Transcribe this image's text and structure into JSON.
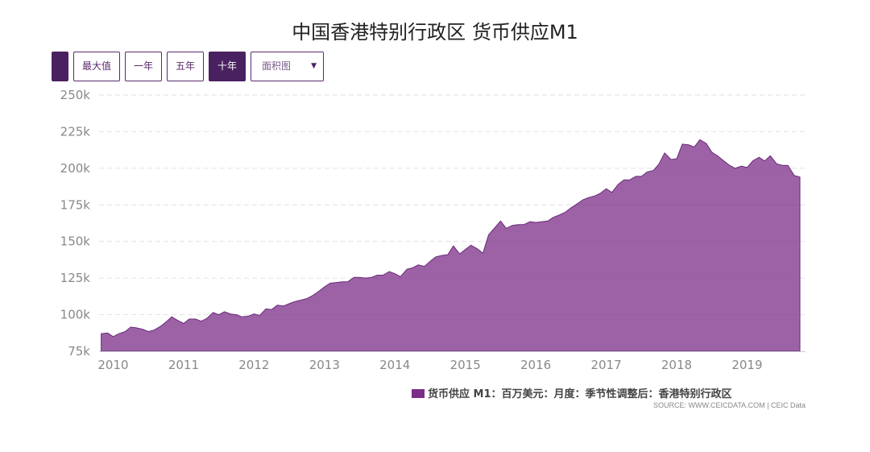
{
  "title": "中国香港特别行政区 货币供应M1",
  "toolbar": {
    "buttons": [
      {
        "label": "",
        "active": true
      },
      {
        "label": "最大值",
        "active": false
      },
      {
        "label": "一年",
        "active": false
      },
      {
        "label": "五年",
        "active": false
      },
      {
        "label": "十年",
        "active": true
      }
    ],
    "select": {
      "value": "面积图"
    }
  },
  "colors": {
    "area": "#7b2e87",
    "accent": "#4a2160"
  },
  "legend": {
    "label": "货币供应 M1：百万美元：月度：季节性调整后：香港特别行政区"
  },
  "source": "SOURCE: WWW.CEICDATA.COM | CEIC Data",
  "chart_data": {
    "type": "area",
    "ylim": [
      75000,
      250000
    ],
    "xlim": [
      2009.8,
      2019.83
    ],
    "y_ticks": [
      {
        "value": 75000,
        "label": "75k"
      },
      {
        "value": 100000,
        "label": "100k"
      },
      {
        "value": 125000,
        "label": "125k"
      },
      {
        "value": 150000,
        "label": "150k"
      },
      {
        "value": 175000,
        "label": "175k"
      },
      {
        "value": 200000,
        "label": "200k"
      },
      {
        "value": 225000,
        "label": "225k"
      },
      {
        "value": 250000,
        "label": "250k"
      }
    ],
    "x_ticks": [
      {
        "value": 2010,
        "label": "2010"
      },
      {
        "value": 2011,
        "label": "2011"
      },
      {
        "value": 2012,
        "label": "2012"
      },
      {
        "value": 2013,
        "label": "2013"
      },
      {
        "value": 2014,
        "label": "2014"
      },
      {
        "value": 2015,
        "label": "2015"
      },
      {
        "value": 2016,
        "label": "2016"
      },
      {
        "value": 2017,
        "label": "2017"
      },
      {
        "value": 2018,
        "label": "2018"
      },
      {
        "value": 2019,
        "label": "2019"
      }
    ],
    "grid": true,
    "series": [
      {
        "name": "货币供应 M1：百万美元：月度：季节性调整后：香港特别行政区",
        "x": [
          2009.83,
          2009.92,
          2010.0,
          2010.08,
          2010.17,
          2010.25,
          2010.33,
          2010.42,
          2010.5,
          2010.58,
          2010.67,
          2010.75,
          2010.83,
          2010.92,
          2011.0,
          2011.08,
          2011.17,
          2011.25,
          2011.33,
          2011.42,
          2011.5,
          2011.58,
          2011.67,
          2011.75,
          2011.83,
          2011.92,
          2012.0,
          2012.08,
          2012.17,
          2012.25,
          2012.33,
          2012.42,
          2012.5,
          2012.58,
          2012.67,
          2012.75,
          2012.83,
          2012.92,
          2013.0,
          2013.08,
          2013.17,
          2013.25,
          2013.33,
          2013.42,
          2013.5,
          2013.58,
          2013.67,
          2013.75,
          2013.83,
          2013.92,
          2014.0,
          2014.08,
          2014.17,
          2014.25,
          2014.33,
          2014.42,
          2014.5,
          2014.58,
          2014.67,
          2014.75,
          2014.83,
          2014.92,
          2015.0,
          2015.08,
          2015.17,
          2015.25,
          2015.33,
          2015.42,
          2015.5,
          2015.58,
          2015.67,
          2015.75,
          2015.83,
          2015.92,
          2016.0,
          2016.08,
          2016.17,
          2016.25,
          2016.33,
          2016.42,
          2016.5,
          2016.58,
          2016.67,
          2016.75,
          2016.83,
          2016.92,
          2017.0,
          2017.08,
          2017.17,
          2017.25,
          2017.33,
          2017.42,
          2017.5,
          2017.58,
          2017.67,
          2017.75,
          2017.83,
          2017.92,
          2018.0,
          2018.08,
          2018.17,
          2018.25,
          2018.33,
          2018.42,
          2018.5,
          2018.58,
          2018.67,
          2018.75,
          2018.83,
          2018.92,
          2019.0,
          2019.08,
          2019.17,
          2019.25,
          2019.33,
          2019.42,
          2019.5,
          2019.58,
          2019.67,
          2019.75
        ],
        "values": [
          87000,
          87500,
          85000,
          87000,
          88500,
          91500,
          91000,
          90000,
          88500,
          89500,
          92000,
          95000,
          98500,
          96000,
          94000,
          97000,
          97000,
          95500,
          97500,
          101500,
          100000,
          102000,
          100500,
          100000,
          98500,
          99000,
          100500,
          99500,
          104000,
          103500,
          106500,
          106000,
          107500,
          109000,
          110000,
          111000,
          113000,
          116000,
          119000,
          121500,
          122000,
          122500,
          122500,
          125500,
          125500,
          125000,
          125500,
          127000,
          127000,
          129500,
          128000,
          126000,
          131000,
          132000,
          134000,
          133000,
          136500,
          139500,
          140500,
          141000,
          147000,
          141500,
          144500,
          147500,
          145000,
          142000,
          154500,
          159500,
          164000,
          159000,
          161000,
          161500,
          161500,
          163500,
          163000,
          163500,
          164000,
          166500,
          168000,
          170000,
          173000,
          175500,
          178500,
          180000,
          181000,
          183000,
          186000,
          183500,
          189000,
          192000,
          192000,
          194500,
          194500,
          197500,
          198500,
          203000,
          210500,
          206000,
          206500,
          216500,
          216000,
          214500,
          219500,
          217000,
          211000,
          208500,
          205000,
          202000,
          200000,
          201500,
          200500,
          205000,
          207500,
          205000,
          208500,
          203000,
          202000,
          202000,
          195000,
          194000
        ]
      }
    ]
  }
}
